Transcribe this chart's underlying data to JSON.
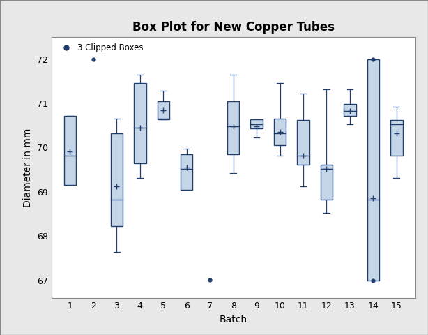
{
  "title": "Box Plot for New Copper Tubes",
  "xlabel": "Batch",
  "ylabel": "Diameter in mm",
  "legend_label": "3 Clipped Boxes",
  "ylim": [
    66.6,
    72.5
  ],
  "xlim": [
    0.2,
    15.8
  ],
  "xticks": [
    1,
    2,
    3,
    4,
    5,
    6,
    7,
    8,
    9,
    10,
    11,
    12,
    13,
    14,
    15
  ],
  "yticks": [
    67,
    68,
    69,
    70,
    71,
    72
  ],
  "box_color": "#c5d5e8",
  "edge_color": "#1f3e6e",
  "mean_color": "#1f3e6e",
  "whisker_color": "#1f3e6e",
  "clipped_color": "#1f3e6e",
  "figsize": [
    6.14,
    4.8
  ],
  "dpi": 100,
  "boxes": [
    {
      "batch": 1,
      "q1": 69.15,
      "median": 69.82,
      "q3": 70.72,
      "whislo": 69.15,
      "whishi": 70.72,
      "mean": 69.92,
      "clipped": false,
      "only_dot": false
    },
    {
      "batch": 2,
      "q1": null,
      "median": null,
      "q3": null,
      "whislo": null,
      "whishi": null,
      "mean": null,
      "clipped": true,
      "only_dot": true,
      "clip_val": 72.0
    },
    {
      "batch": 3,
      "q1": 68.22,
      "median": 68.83,
      "q3": 70.33,
      "whislo": 67.65,
      "whishi": 70.65,
      "mean": 69.12,
      "clipped": false,
      "only_dot": false
    },
    {
      "batch": 4,
      "q1": 69.65,
      "median": 70.45,
      "q3": 71.45,
      "whislo": 69.32,
      "whishi": 71.65,
      "mean": 70.45,
      "clipped": false,
      "only_dot": false
    },
    {
      "batch": 5,
      "q1": 70.63,
      "median": 70.65,
      "q3": 71.05,
      "whislo": 70.63,
      "whishi": 71.28,
      "mean": 70.85,
      "clipped": false,
      "only_dot": false
    },
    {
      "batch": 6,
      "q1": 69.05,
      "median": 69.52,
      "q3": 69.85,
      "whislo": 69.05,
      "whishi": 69.98,
      "mean": 69.55,
      "clipped": false,
      "only_dot": false
    },
    {
      "batch": 7,
      "q1": null,
      "median": null,
      "q3": null,
      "whislo": null,
      "whishi": null,
      "mean": null,
      "clipped": true,
      "only_dot": true,
      "clip_val": 67.02
    },
    {
      "batch": 8,
      "q1": 69.85,
      "median": 70.48,
      "q3": 71.05,
      "whislo": 69.42,
      "whishi": 71.65,
      "mean": 70.48,
      "clipped": false,
      "only_dot": false
    },
    {
      "batch": 9,
      "q1": 70.43,
      "median": 70.52,
      "q3": 70.63,
      "whislo": 70.22,
      "whishi": 70.63,
      "mean": 70.48,
      "clipped": false,
      "only_dot": false
    },
    {
      "batch": 10,
      "q1": 70.05,
      "median": 70.32,
      "q3": 70.65,
      "whislo": 69.82,
      "whishi": 71.45,
      "mean": 70.35,
      "clipped": false,
      "only_dot": false
    },
    {
      "batch": 11,
      "q1": 69.62,
      "median": 69.82,
      "q3": 70.62,
      "whislo": 69.12,
      "whishi": 71.22,
      "mean": 69.82,
      "clipped": false,
      "only_dot": false
    },
    {
      "batch": 12,
      "q1": 68.82,
      "median": 69.52,
      "q3": 69.62,
      "whislo": 68.52,
      "whishi": 71.32,
      "mean": 69.52,
      "clipped": false,
      "only_dot": false
    },
    {
      "batch": 13,
      "q1": 70.72,
      "median": 70.82,
      "q3": 70.98,
      "whislo": 70.52,
      "whishi": 71.32,
      "mean": 70.82,
      "clipped": false,
      "only_dot": false
    },
    {
      "batch": 14,
      "q1": 67.0,
      "median": 68.82,
      "q3": 72.0,
      "whislo": 67.0,
      "whishi": 72.0,
      "mean": 68.85,
      "clipped": true,
      "only_dot": false,
      "clip_val_lo": 67.0,
      "clip_val_hi": 72.0
    },
    {
      "batch": 15,
      "q1": 69.82,
      "median": 70.52,
      "q3": 70.62,
      "whislo": 69.32,
      "whishi": 70.92,
      "mean": 70.32,
      "clipped": false,
      "only_dot": false
    }
  ]
}
